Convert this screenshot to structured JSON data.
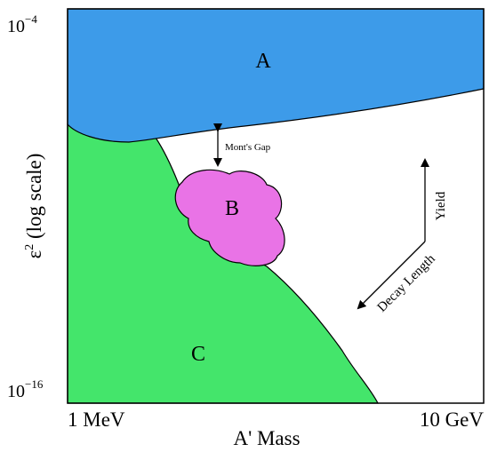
{
  "colors": {
    "region_a": "#3d9be9",
    "region_b": "#e973e6",
    "region_c": "#44e56b",
    "outline": "#000000",
    "background": "#ffffff"
  },
  "axes": {
    "y_label_base": "ε",
    "y_label_exp": "2",
    "y_label_rest": " (log scale)",
    "y_top_base": "10",
    "y_top_exp": "−4",
    "y_bottom_base": "10",
    "y_bottom_exp": "−16",
    "x_label": "A' Mass",
    "x_left_tick": "1 MeV",
    "x_right_tick": "10 GeV"
  },
  "regions": {
    "a_label": "A",
    "b_label": "B",
    "c_label": "C"
  },
  "annotations": {
    "gap_label": "Mont's Gap",
    "yield_label": "Yield",
    "decay_label": "Decay Length"
  }
}
